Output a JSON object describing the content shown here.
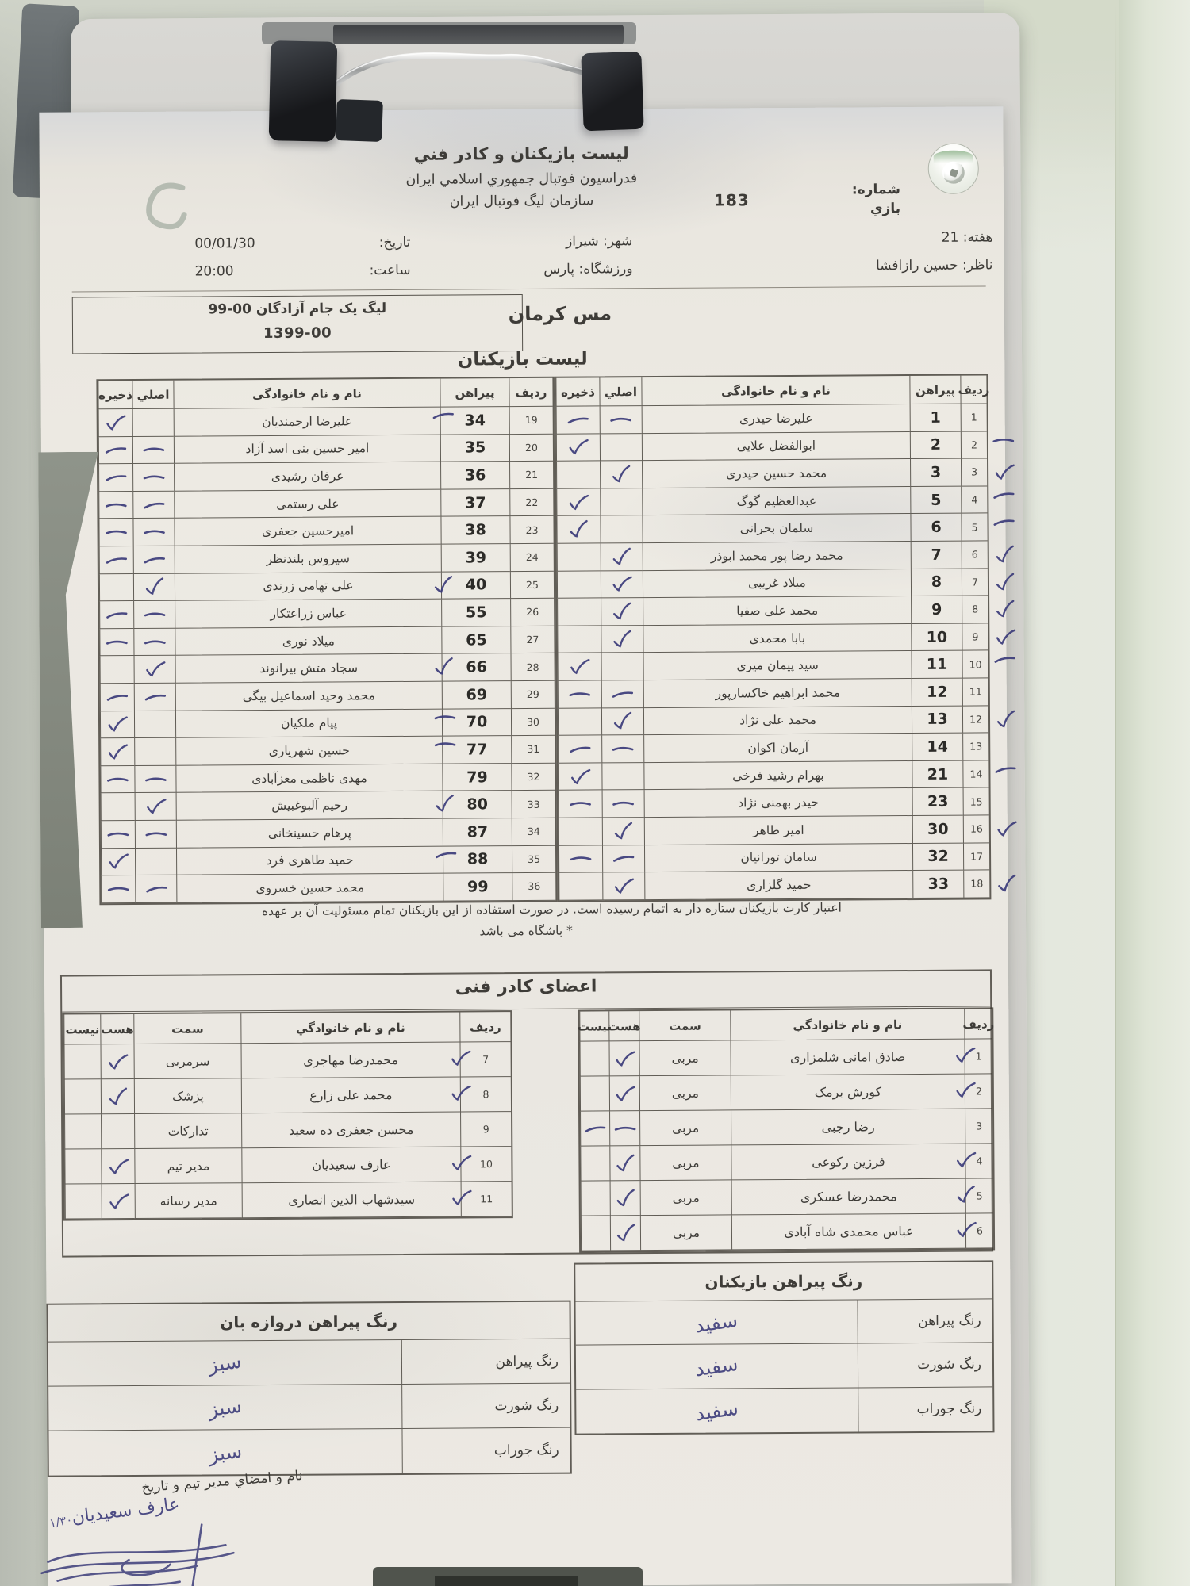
{
  "colors": {
    "ink": "#3c3c7a",
    "paper": "#eae7e0",
    "clip_black": "#222528",
    "cloth_green": "#dfe5d6"
  },
  "icons": {
    "federation-logo": "ffiri-emblem-circle-with-ball",
    "club-logo": "mes-kerman-swirl-watermark",
    "checkmark": "handwritten-check",
    "dash-mark": "handwritten-dash",
    "clip": "metal-clipboard-clip"
  },
  "header": {
    "title": "لیست بازیکنان و کادر فني",
    "federation": "فدراسیون فوتبال جمهوري اسلامي ایران",
    "organization": "سازمان لیگ فوتبال ایران",
    "match_no_label1": "شماره:",
    "match_no_label2": "بازي",
    "match_no": "183",
    "week_label": "هفته:",
    "week": "21",
    "observer_label": "ناظر:",
    "observer": "حسین رازافشا",
    "city_label": "شهر:",
    "city": "شیراز",
    "stadium_label": "ورزشگاه:",
    "stadium": "پارس",
    "date_label": "تاریخ:",
    "date": "00/01/30",
    "time_label": "ساعت:",
    "time": "20:00",
    "league_line1": "لیگ یک جام آزادگان 00-99",
    "league_line2": "1399-00",
    "team": "مس کرمان"
  },
  "players": {
    "section_title": "لیست بازیکنان",
    "columns": {
      "row": "ردیف",
      "shirt": "پیراهن",
      "name": "نام و نام خانوادگی",
      "main": "اصلي",
      "reserve": "ذخیره"
    },
    "right_rows": [
      {
        "row": "1",
        "shirt": "1",
        "name": "علیرضا حیدری",
        "status": "absent"
      },
      {
        "row": "2",
        "shirt": "2",
        "name": "ابوالفضل علایی",
        "status": "reserve"
      },
      {
        "row": "3",
        "shirt": "3",
        "name": "محمد حسین حیدری",
        "status": "main"
      },
      {
        "row": "4",
        "shirt": "5",
        "name": "عبدالعظیم گوگ",
        "status": "reserve"
      },
      {
        "row": "5",
        "shirt": "6",
        "name": "سلمان بحرانی",
        "status": "reserve"
      },
      {
        "row": "6",
        "shirt": "7",
        "name": "محمد رضا پور محمد ابوذر",
        "status": "main"
      },
      {
        "row": "7",
        "shirt": "8",
        "name": "میلاد غریبی",
        "status": "main"
      },
      {
        "row": "8",
        "shirt": "9",
        "name": "محمد علی صفیا",
        "status": "main"
      },
      {
        "row": "9",
        "shirt": "10",
        "name": "بابا محمدی",
        "status": "main"
      },
      {
        "row": "10",
        "shirt": "11",
        "name": "سید پیمان میری",
        "status": "reserve"
      },
      {
        "row": "11",
        "shirt": "12",
        "name": "محمد ابراهیم خاکسارپور",
        "status": "absent"
      },
      {
        "row": "12",
        "shirt": "13",
        "name": "محمد علی نژاد",
        "status": "main"
      },
      {
        "row": "13",
        "shirt": "14",
        "name": "آرمان اکوان",
        "status": "absent"
      },
      {
        "row": "14",
        "shirt": "21",
        "name": "بهرام رشید فرخی",
        "status": "reserve"
      },
      {
        "row": "15",
        "shirt": "23",
        "name": "حیدر بهمنی نژاد",
        "status": "absent"
      },
      {
        "row": "16",
        "shirt": "30",
        "name": "امیر طاهر",
        "status": "main"
      },
      {
        "row": "17",
        "shirt": "32",
        "name": "سامان تورانیان",
        "status": "absent"
      },
      {
        "row": "18",
        "shirt": "33",
        "name": "حمید گلزاری",
        "status": "main"
      }
    ],
    "left_rows": [
      {
        "row": "19",
        "shirt": "34",
        "name": "علیرضا ارجمندیان",
        "status": "reserve"
      },
      {
        "row": "20",
        "shirt": "35",
        "name": "امیر حسین بنی اسد آزاد",
        "status": "absent"
      },
      {
        "row": "21",
        "shirt": "36",
        "name": "عرفان رشیدی",
        "status": "absent"
      },
      {
        "row": "22",
        "shirt": "37",
        "name": "علی رستمی",
        "status": "absent"
      },
      {
        "row": "23",
        "shirt": "38",
        "name": "امیرحسین جعفری",
        "status": "absent"
      },
      {
        "row": "24",
        "shirt": "39",
        "name": "سیروس بلندنظر",
        "status": "absent"
      },
      {
        "row": "25",
        "shirt": "40",
        "name": "علی تهامی زرندی",
        "status": "main"
      },
      {
        "row": "26",
        "shirt": "55",
        "name": "عباس زراعتکار",
        "status": "absent"
      },
      {
        "row": "27",
        "shirt": "65",
        "name": "میلاد نوری",
        "status": "absent"
      },
      {
        "row": "28",
        "shirt": "66",
        "name": "سجاد متش بیرانوند",
        "status": "main"
      },
      {
        "row": "29",
        "shirt": "69",
        "name": "محمد وحید اسماعیل بیگی",
        "status": "absent"
      },
      {
        "row": "30",
        "shirt": "70",
        "name": "پیام ملکیان",
        "status": "reserve"
      },
      {
        "row": "31",
        "shirt": "77",
        "name": "حسین شهریاری",
        "status": "reserve"
      },
      {
        "row": "32",
        "shirt": "79",
        "name": "مهدی ناظمی معزآبادی",
        "status": "absent"
      },
      {
        "row": "33",
        "shirt": "80",
        "name": "رحیم آلبوغبیش",
        "status": "main"
      },
      {
        "row": "34",
        "shirt": "87",
        "name": "پرهام حسینخانی",
        "status": "absent"
      },
      {
        "row": "35",
        "shirt": "88",
        "name": "حمید طاهری فرد",
        "status": "reserve"
      },
      {
        "row": "36",
        "shirt": "99",
        "name": "محمد حسین خسروی",
        "status": "absent"
      }
    ],
    "note_line1": "اعتبار کارت بازیکنان ستاره دار به اتمام رسیده است. در صورت استفاده از این بازیکنان تمام مسئولیت آن بر عهده",
    "note_line2": "* باشگاه می باشد"
  },
  "staff": {
    "section_title": "اعضای کادر فنی",
    "columns": {
      "row": "ردیف",
      "name": "نام و نام خانوادگي",
      "role": "سمت",
      "present": "هست",
      "absent": "نیست"
    },
    "right_rows": [
      {
        "row": "1",
        "name": "صادق امانی شلمزاری",
        "role": "مربی",
        "status": "present"
      },
      {
        "row": "2",
        "name": "کورش برمک",
        "role": "مربی",
        "status": "present"
      },
      {
        "row": "3",
        "name": "رضا رجبی",
        "role": "مربی",
        "status": "dash"
      },
      {
        "row": "4",
        "name": "فرزین رکوعی",
        "role": "مربی",
        "status": "present"
      },
      {
        "row": "5",
        "name": "محمدرضا عسکری",
        "role": "مربی",
        "status": "present"
      },
      {
        "row": "6",
        "name": "عباس محمدی شاه آبادی",
        "role": "مربی",
        "status": "present"
      }
    ],
    "left_rows": [
      {
        "row": "7",
        "name": "محمدرضا مهاجری",
        "role": "سرمربی",
        "status": "present"
      },
      {
        "row": "8",
        "name": "محمد علی زارع",
        "role": "پزشک",
        "status": "present"
      },
      {
        "row": "9",
        "name": "محسن جعفری ده سعید",
        "role": "تدارکات",
        "status": "none"
      },
      {
        "row": "10",
        "name": "عارف سعیدیان",
        "role": "مدیر تیم",
        "status": "present"
      },
      {
        "row": "11",
        "name": "سیدشهاب الدین انصاری",
        "role": "مدیر رسانه",
        "status": "present"
      }
    ]
  },
  "kits": {
    "players_title": "رنگ پیراهن بازیکنان",
    "gk_title": "رنگ پیراهن دروازه بان",
    "row_labels": [
      "رنگ پیراهن",
      "رنگ شورت",
      "رنگ جوراب"
    ],
    "players_values": [
      "سفید",
      "سفید",
      "سفید"
    ],
    "gk_values": [
      "سبز",
      "سبز",
      "سبز"
    ]
  },
  "signature": {
    "label": "نام و امضاي مدیر تیم و تاریخ",
    "name": "عارف سعیدیان",
    "date": "۱/۳۰"
  }
}
